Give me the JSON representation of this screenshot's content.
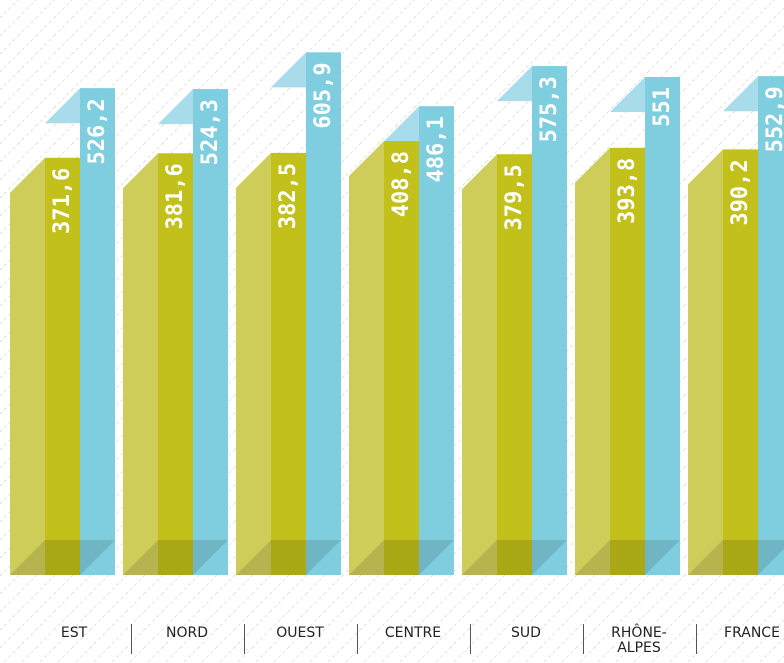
{
  "chart_data": {
    "type": "bar3d",
    "categories": [
      "EST",
      "NORD",
      "OUEST",
      "CENTRE",
      "SUD",
      "RHÔNE-ALPES",
      "FRANCE"
    ],
    "series": [
      {
        "color": "#c2c01a",
        "side_color": "#cfcd5a",
        "values": [
          371.6,
          381.6,
          382.5,
          408.8,
          379.5,
          393.8,
          390.2
        ],
        "value_labels": [
          "371,6",
          "381,6",
          "382,5",
          "408,8",
          "379,5",
          "393,8",
          "390,2"
        ]
      },
      {
        "color": "#7fcee0",
        "top_color": "#a8dcea",
        "values": [
          526.2,
          524.3,
          605.9,
          486.1,
          575.3,
          551,
          552.9
        ],
        "value_labels": [
          "526,2",
          "524,3",
          "605,9",
          "486,1",
          "575,3",
          "551",
          "552,9"
        ]
      }
    ]
  }
}
